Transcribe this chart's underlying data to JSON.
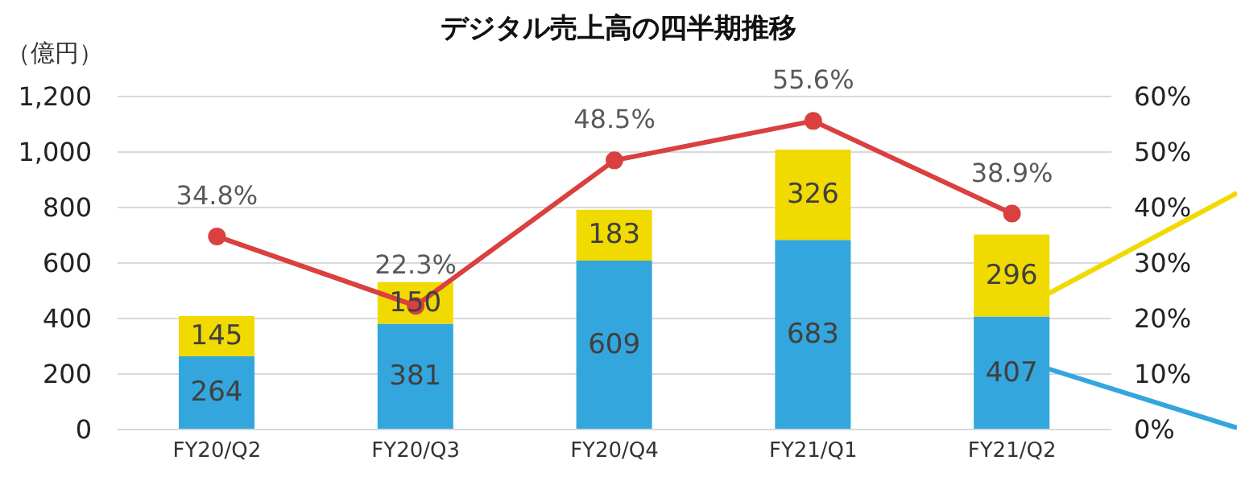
{
  "chart_data": {
    "type": "bar",
    "title": "デジタル売上高の四半期推移",
    "ylabel": "（億円）",
    "categories": [
      "FY20/Q2",
      "FY20/Q3",
      "FY20/Q4",
      "FY21/Q1",
      "FY21/Q2"
    ],
    "stacked": true,
    "series": [
      {
        "color": "#33a6dd",
        "values": [
          264,
          381,
          609,
          683,
          407
        ],
        "value_labels": [
          "264",
          "381",
          "609",
          "683",
          "407"
        ]
      },
      {
        "color": "#f0da00",
        "values": [
          145,
          150,
          183,
          326,
          296
        ],
        "value_labels": [
          "145",
          "150",
          "183",
          "326",
          "296"
        ]
      },
      {
        "type": "line",
        "axis": "y2",
        "color": "#d9403f",
        "values": [
          34.8,
          22.3,
          48.5,
          55.6,
          38.9
        ],
        "value_labels": [
          "34.8%",
          "22.3%",
          "48.5%",
          "55.6%",
          "38.9%"
        ]
      }
    ],
    "ylim": [
      0,
      1200
    ],
    "yticks": [
      0,
      200,
      400,
      600,
      800,
      {
        "value": 1000,
        "label": "1,000"
      },
      {
        "value": 1200,
        "label": "1,200"
      }
    ],
    "y2lim": [
      0,
      60
    ],
    "y2ticks": [
      {
        "value": 0,
        "label": "0%"
      },
      {
        "value": 10,
        "label": "10%"
      },
      {
        "value": 20,
        "label": "20%"
      },
      {
        "value": 30,
        "label": "30%"
      },
      {
        "value": 40,
        "label": "40%"
      },
      {
        "value": 50,
        "label": "50%"
      },
      {
        "value": 60,
        "label": "60%"
      }
    ],
    "grid": "y",
    "legend": false,
    "marker": "circle",
    "line_style": "solid"
  }
}
